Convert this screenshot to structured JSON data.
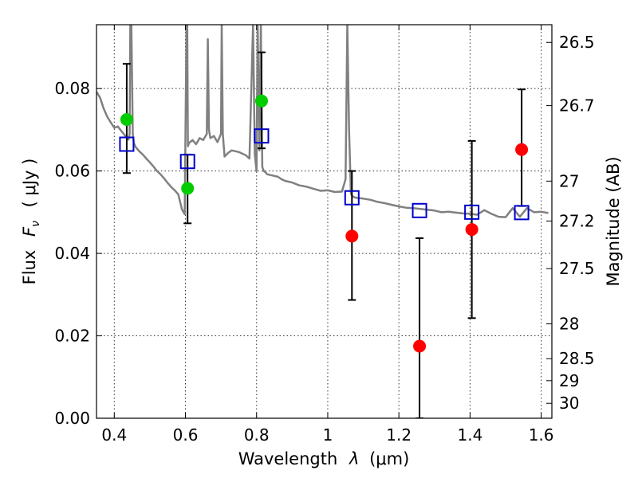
{
  "chart_data": {
    "type": "scatter",
    "xlabel_text": "Wavelength",
    "xlabel_symbol": "λ",
    "xlabel_unit": "(μm)",
    "ylabel_text": "Flux",
    "ylabel_symbol": "F",
    "ylabel_subscript": "ν",
    "ylabel_unit": "( μJy )",
    "y2label": "Magnitude (AB)",
    "xlim": [
      0.35,
      1.63
    ],
    "ylim": [
      0.0,
      0.0955
    ],
    "grid": true,
    "x_ticks": [
      {
        "value": 0.4,
        "label": "0.4"
      },
      {
        "value": 0.6,
        "label": "0.6"
      },
      {
        "value": 0.8,
        "label": "0.8"
      },
      {
        "value": 1.0,
        "label": "1"
      },
      {
        "value": 1.2,
        "label": "1.2"
      },
      {
        "value": 1.4,
        "label": "1.4"
      },
      {
        "value": 1.6,
        "label": "1.6"
      }
    ],
    "y_ticks": [
      {
        "value": 0.0,
        "label": "0.00"
      },
      {
        "value": 0.02,
        "label": "0.02"
      },
      {
        "value": 0.04,
        "label": "0.04"
      },
      {
        "value": 0.06,
        "label": "0.06"
      },
      {
        "value": 0.08,
        "label": "0.08"
      }
    ],
    "y2_ticks": [
      {
        "mag": 26.5,
        "label": "26.5"
      },
      {
        "mag": 26.7,
        "label": "26.7"
      },
      {
        "mag": 27.0,
        "label": "27"
      },
      {
        "mag": 27.2,
        "label": "27.2"
      },
      {
        "mag": 27.5,
        "label": "27.5"
      },
      {
        "mag": 28.0,
        "label": "28"
      },
      {
        "mag": 28.5,
        "label": "28.5"
      },
      {
        "mag": 29.0,
        "label": "29"
      },
      {
        "mag": 30.0,
        "label": "30"
      }
    ],
    "model_sed": {
      "color": "#808080",
      "x": [
        0.35,
        0.36,
        0.37,
        0.38,
        0.39,
        0.4,
        0.41,
        0.42,
        0.43,
        0.44,
        0.443,
        0.445,
        0.448,
        0.452,
        0.455,
        0.46,
        0.47,
        0.48,
        0.49,
        0.5,
        0.51,
        0.52,
        0.53,
        0.54,
        0.55,
        0.56,
        0.57,
        0.58,
        0.59,
        0.598,
        0.603,
        0.605,
        0.607,
        0.61,
        0.62,
        0.63,
        0.64,
        0.65,
        0.66,
        0.663,
        0.666,
        0.67,
        0.68,
        0.69,
        0.7,
        0.702,
        0.705,
        0.71,
        0.72,
        0.73,
        0.74,
        0.75,
        0.76,
        0.77,
        0.78,
        0.79,
        0.795,
        0.8,
        0.803,
        0.808,
        0.812,
        0.816,
        0.82,
        0.825,
        0.83,
        0.84,
        0.85,
        0.86,
        0.87,
        0.88,
        0.9,
        0.92,
        0.94,
        0.96,
        0.98,
        1.0,
        1.02,
        1.04,
        1.05,
        1.055,
        1.06,
        1.065,
        1.07,
        1.08,
        1.1,
        1.12,
        1.14,
        1.16,
        1.18,
        1.2,
        1.22,
        1.24,
        1.26,
        1.28,
        1.3,
        1.32,
        1.34,
        1.36,
        1.38,
        1.4,
        1.42,
        1.44,
        1.46,
        1.48,
        1.5,
        1.52,
        1.54,
        1.56,
        1.58,
        1.6,
        1.62
      ],
      "y": [
        0.0792,
        0.0778,
        0.0752,
        0.0732,
        0.0718,
        0.0705,
        0.0708,
        0.0697,
        0.0686,
        0.0676,
        0.069,
        0.0955,
        0.0955,
        0.069,
        0.0668,
        0.0658,
        0.0648,
        0.064,
        0.063,
        0.0621,
        0.0611,
        0.06,
        0.0592,
        0.0582,
        0.0571,
        0.0561,
        0.0553,
        0.0543,
        0.0507,
        0.0495,
        0.0955,
        0.0955,
        0.066,
        0.0668,
        0.0675,
        0.0665,
        0.068,
        0.0675,
        0.069,
        0.092,
        0.07,
        0.068,
        0.0685,
        0.067,
        0.069,
        0.0955,
        0.069,
        0.0635,
        0.0644,
        0.065,
        0.0648,
        0.0646,
        0.0642,
        0.0638,
        0.063,
        0.0955,
        0.064,
        0.06,
        0.0955,
        0.065,
        0.0955,
        0.061,
        0.06,
        0.0597,
        0.0592,
        0.059,
        0.0588,
        0.0586,
        0.058,
        0.0576,
        0.0572,
        0.0565,
        0.0562,
        0.0557,
        0.0552,
        0.0553,
        0.0549,
        0.055,
        0.058,
        0.0955,
        0.07,
        0.0545,
        0.0538,
        0.0535,
        0.0533,
        0.053,
        0.0525,
        0.0522,
        0.0518,
        0.0514,
        0.0511,
        0.051,
        0.0508,
        0.0506,
        0.0504,
        0.05,
        0.0501,
        0.0499,
        0.0497,
        0.0496,
        0.0494,
        0.0505,
        0.0496,
        0.0489,
        0.0488,
        0.051,
        0.0489,
        0.051,
        0.05,
        0.0501,
        0.0498
      ]
    },
    "model_photometry": {
      "marker": "open-square",
      "color": "#0000cc",
      "x": [
        0.435,
        0.606,
        0.814,
        1.068,
        1.258,
        1.405,
        1.545
      ],
      "y": [
        0.0665,
        0.0623,
        0.0685,
        0.0535,
        0.0504,
        0.05,
        0.0499
      ]
    },
    "observed_points": [
      {
        "x": 0.435,
        "y": 0.0725,
        "err_low": 0.0595,
        "err_high": 0.086,
        "color": "#00cc00"
      },
      {
        "x": 0.606,
        "y": 0.0558,
        "err_low": 0.0473,
        "err_high": 0.064,
        "color": "#00cc00"
      },
      {
        "x": 0.814,
        "y": 0.077,
        "err_low": 0.0655,
        "err_high": 0.0888,
        "color": "#00cc00"
      },
      {
        "x": 1.068,
        "y": 0.0442,
        "err_low": 0.0287,
        "err_high": 0.06,
        "color": "#ff0000"
      },
      {
        "x": 1.258,
        "y": 0.0175,
        "err_low": 0.0,
        "err_high": 0.0437,
        "color": "#ff0000"
      },
      {
        "x": 1.405,
        "y": 0.0458,
        "err_low": 0.0243,
        "err_high": 0.0673,
        "color": "#ff0000"
      },
      {
        "x": 1.545,
        "y": 0.0652,
        "err_low": 0.0515,
        "err_high": 0.0798,
        "color": "#ff0000"
      }
    ]
  }
}
